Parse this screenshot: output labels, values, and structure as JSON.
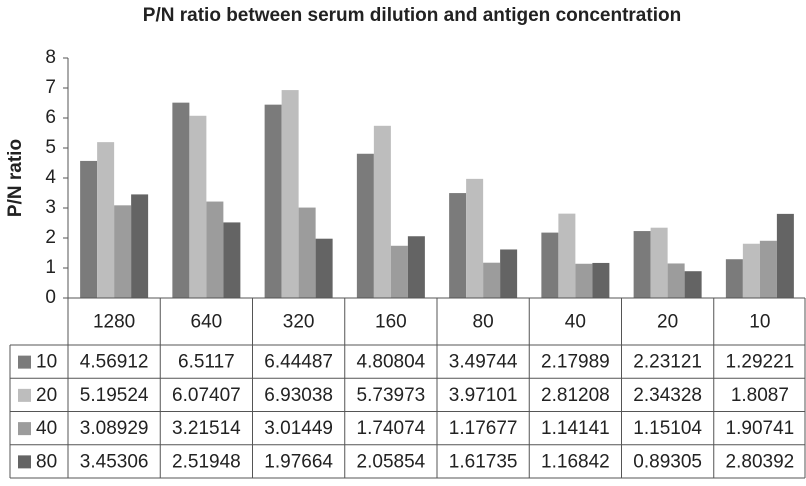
{
  "chart_data": {
    "type": "bar",
    "title": "P/N ratio between serum dilution and antigen concentration",
    "y_label": "P/N ratio",
    "categories": [
      "1280",
      "640",
      "320",
      "160",
      "80",
      "40",
      "20",
      "10"
    ],
    "series": [
      {
        "name": "10",
        "color": "#7b7b7b",
        "values": [
          4.56912,
          6.5117,
          6.44487,
          4.80804,
          3.49744,
          2.17989,
          2.23121,
          1.29221
        ]
      },
      {
        "name": "20",
        "color": "#bdbdbd",
        "values": [
          5.19524,
          6.07407,
          6.93038,
          5.73973,
          3.97101,
          2.81208,
          2.34328,
          1.8087
        ]
      },
      {
        "name": "40",
        "color": "#9c9c9c",
        "values": [
          3.08929,
          3.21514,
          3.01449,
          1.74074,
          1.17677,
          1.14141,
          1.15104,
          1.90741
        ]
      },
      {
        "name": "80",
        "color": "#646464",
        "values": [
          3.45306,
          2.51948,
          1.97664,
          2.05854,
          1.61735,
          1.16842,
          0.89305,
          2.80392
        ]
      }
    ],
    "ylim": [
      0,
      8
    ],
    "yticks": [
      0,
      1,
      2,
      3,
      4,
      5,
      6,
      7,
      8
    ]
  }
}
